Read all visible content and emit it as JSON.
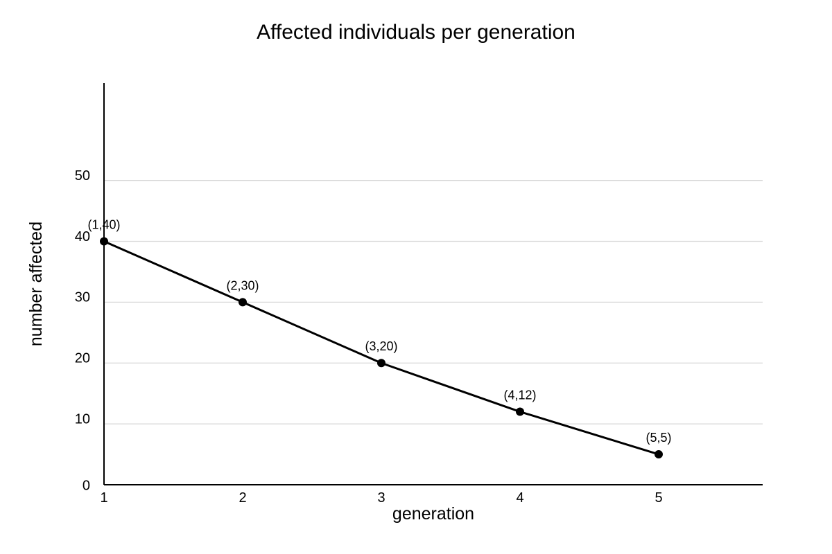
{
  "chart_data": {
    "type": "line",
    "title": "Affected individuals per generation",
    "xlabel": "generation",
    "ylabel": "number affected",
    "x": [
      1,
      2,
      3,
      4,
      5
    ],
    "series": [
      {
        "values": [
          40,
          30,
          20,
          12,
          5
        ]
      }
    ],
    "point_labels": [
      "(1,40)",
      "(2,30)",
      "(3,20)",
      "(4,12)",
      "(5,5)"
    ],
    "x_ticks": [
      "1",
      "2",
      "3",
      "4",
      "5"
    ],
    "y_ticks": [
      "0",
      "10",
      "20",
      "30",
      "40",
      "50"
    ],
    "xlim": [
      1,
      5.75
    ],
    "ylim": [
      0,
      66
    ],
    "grid": true,
    "legend": "none",
    "colors": {
      "line": "#000000",
      "grid": "#d9d9d9",
      "axis": "#000000"
    }
  }
}
